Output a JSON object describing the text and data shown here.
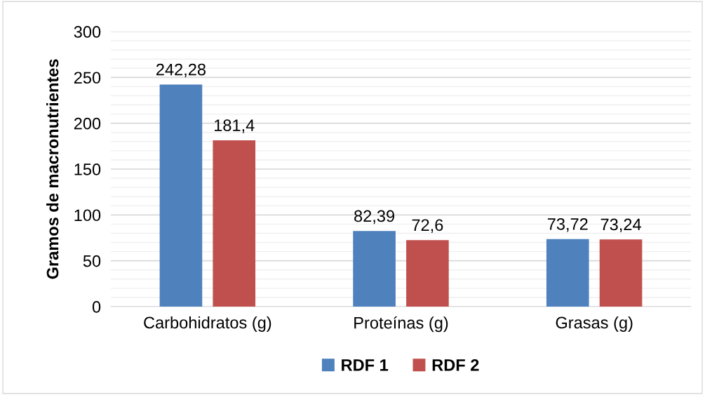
{
  "chart_data": {
    "type": "bar",
    "ylabel": "Gramos de macronutrientes",
    "categories": [
      "Carbohidratos (g)",
      "Proteínas (g)",
      "Grasas (g)"
    ],
    "series": [
      {
        "name": "RDF 1",
        "color": "#4f81bd",
        "values": [
          242.28,
          82.39,
          73.72
        ],
        "value_labels": [
          "242,28",
          "82,39",
          "73,72"
        ]
      },
      {
        "name": "RDF 2",
        "color": "#c0504d",
        "values": [
          181.4,
          72.6,
          73.24
        ],
        "value_labels": [
          "181,4",
          "72,6",
          "73,24"
        ]
      }
    ],
    "ylim": [
      0,
      300
    ],
    "yticks": [
      0,
      50,
      100,
      150,
      200,
      250,
      300
    ],
    "grid": "y",
    "legend": "bottom"
  }
}
